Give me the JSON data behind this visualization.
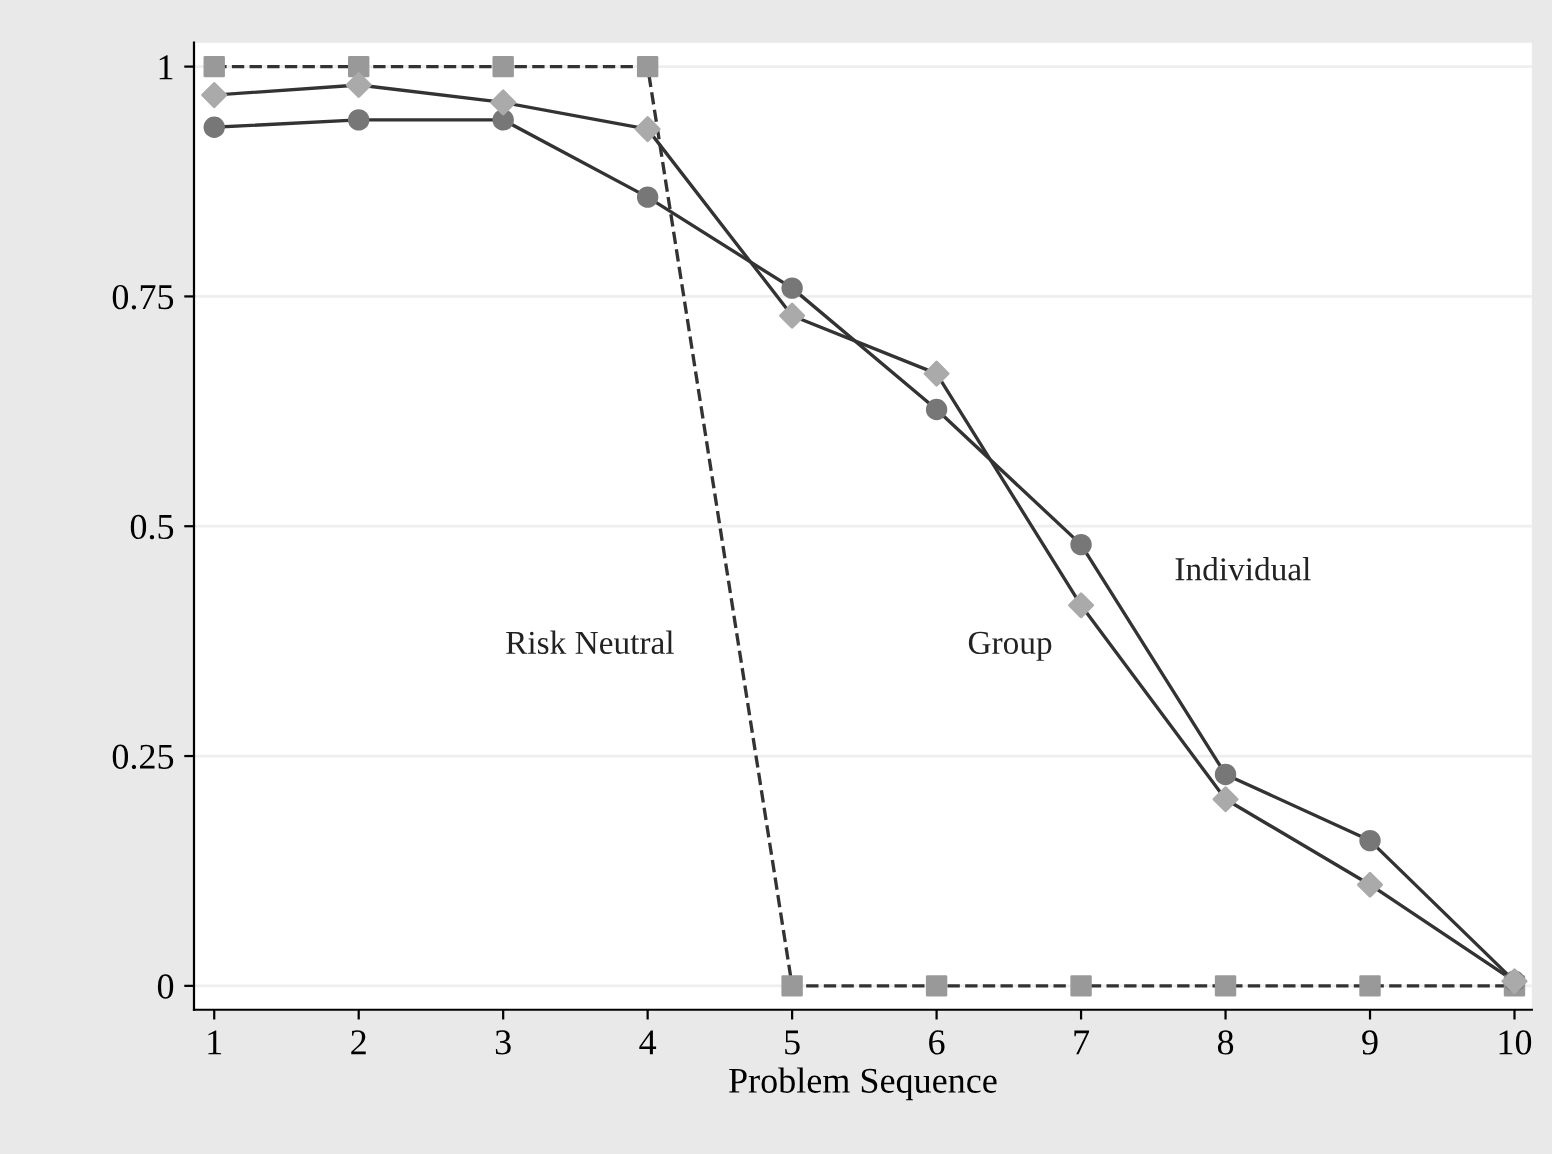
{
  "chart_data": {
    "type": "line",
    "xlabel": "Problem Sequence",
    "x": [
      1,
      2,
      3,
      4,
      5,
      6,
      7,
      8,
      9,
      10
    ],
    "series": [
      {
        "name": "Risk Neutral",
        "color": "#999999",
        "marker": "square",
        "line_style": "dashed",
        "values": [
          1,
          1,
          1,
          1,
          0,
          0,
          0,
          0,
          0,
          0
        ]
      },
      {
        "name": "Individual",
        "color": "#777777",
        "marker": "circle",
        "line_style": "solid",
        "values": [
          0.934,
          0.942,
          0.942,
          0.858,
          0.759,
          0.627,
          0.48,
          0.23,
          0.158,
          0.005
        ]
      },
      {
        "name": "Group",
        "color": "#aaaaaa",
        "marker": "diamond",
        "line_style": "solid",
        "values": [
          0.969,
          0.98,
          0.961,
          0.932,
          0.729,
          0.666,
          0.414,
          0.203,
          0.11,
          0.005
        ]
      }
    ],
    "xlim": [
      0.86,
      10.12
    ],
    "xticks": [
      1,
      2,
      3,
      4,
      5,
      6,
      7,
      8,
      9,
      10
    ],
    "ylim": [
      -0.026,
      1.026
    ],
    "yticks": [
      0,
      0.25,
      0.5,
      0.75,
      1
    ],
    "grid": "y"
  }
}
